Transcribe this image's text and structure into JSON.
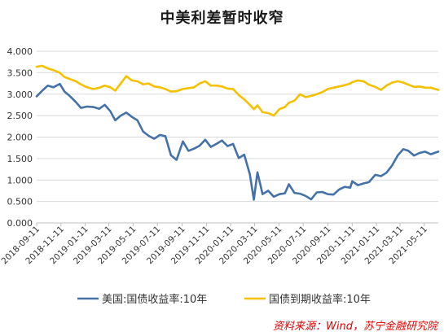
{
  "chart_data": {
    "type": "line",
    "title": "中美利差暂时收窄",
    "ylim": [
      0,
      4
    ],
    "y_ticks": [
      "0.000",
      "0.500",
      "1.000",
      "1.500",
      "2.000",
      "2.500",
      "3.000",
      "3.500",
      "4.000"
    ],
    "x_ticks": [
      "2018-09-11",
      "2018-11-11",
      "2019-01-11",
      "2019-03-11",
      "2019-05-11",
      "2019-07-11",
      "2019-09-11",
      "2019-11-11",
      "2020-01-11",
      "2020-03-11",
      "2020-05-11",
      "2020-07-11",
      "2020-09-11",
      "2020-11-11",
      "2021-01-11",
      "2021-03-11",
      "2021-05-11"
    ],
    "x_range": [
      "2018-09-11",
      "2021-06-15"
    ],
    "grid": true,
    "legend_position": "bottom",
    "colors": {
      "us": "#4472a8",
      "cn": "#f4c000"
    },
    "series": [
      {
        "name": "美国:国债收益率:10年",
        "color": "#4472a8",
        "points": [
          [
            "2018-09-11",
            2.95
          ],
          [
            "2018-09-25",
            3.08
          ],
          [
            "2018-10-09",
            3.2
          ],
          [
            "2018-10-23",
            3.16
          ],
          [
            "2018-11-08",
            3.24
          ],
          [
            "2018-11-20",
            3.06
          ],
          [
            "2018-12-04",
            2.95
          ],
          [
            "2018-12-18",
            2.82
          ],
          [
            "2018-12-31",
            2.68
          ],
          [
            "2019-01-15",
            2.71
          ],
          [
            "2019-02-01",
            2.7
          ],
          [
            "2019-02-15",
            2.66
          ],
          [
            "2019-03-01",
            2.75
          ],
          [
            "2019-03-15",
            2.6
          ],
          [
            "2019-03-27",
            2.39
          ],
          [
            "2019-04-10",
            2.5
          ],
          [
            "2019-04-24",
            2.57
          ],
          [
            "2019-05-08",
            2.47
          ],
          [
            "2019-05-22",
            2.39
          ],
          [
            "2019-06-05",
            2.13
          ],
          [
            "2019-06-19",
            2.03
          ],
          [
            "2019-07-03",
            1.96
          ],
          [
            "2019-07-17",
            2.05
          ],
          [
            "2019-07-31",
            2.02
          ],
          [
            "2019-08-14",
            1.58
          ],
          [
            "2019-08-28",
            1.47
          ],
          [
            "2019-09-13",
            1.9
          ],
          [
            "2019-09-27",
            1.68
          ],
          [
            "2019-10-11",
            1.73
          ],
          [
            "2019-10-25",
            1.8
          ],
          [
            "2019-11-08",
            1.94
          ],
          [
            "2019-11-22",
            1.77
          ],
          [
            "2019-12-06",
            1.84
          ],
          [
            "2019-12-20",
            1.92
          ],
          [
            "2020-01-03",
            1.79
          ],
          [
            "2020-01-17",
            1.84
          ],
          [
            "2020-01-31",
            1.51
          ],
          [
            "2020-02-14",
            1.59
          ],
          [
            "2020-02-28",
            1.13
          ],
          [
            "2020-03-09",
            0.54
          ],
          [
            "2020-03-18",
            1.18
          ],
          [
            "2020-03-31",
            0.67
          ],
          [
            "2020-04-14",
            0.75
          ],
          [
            "2020-04-28",
            0.61
          ],
          [
            "2020-05-12",
            0.67
          ],
          [
            "2020-05-26",
            0.69
          ],
          [
            "2020-06-05",
            0.9
          ],
          [
            "2020-06-19",
            0.7
          ],
          [
            "2020-07-03",
            0.68
          ],
          [
            "2020-07-17",
            0.63
          ],
          [
            "2020-07-31",
            0.55
          ],
          [
            "2020-08-14",
            0.71
          ],
          [
            "2020-08-28",
            0.72
          ],
          [
            "2020-09-11",
            0.67
          ],
          [
            "2020-09-25",
            0.66
          ],
          [
            "2020-10-09",
            0.78
          ],
          [
            "2020-10-23",
            0.84
          ],
          [
            "2020-11-06",
            0.82
          ],
          [
            "2020-11-11",
            0.97
          ],
          [
            "2020-11-25",
            0.88
          ],
          [
            "2020-12-09",
            0.92
          ],
          [
            "2020-12-23",
            0.95
          ],
          [
            "2021-01-08",
            1.12
          ],
          [
            "2021-01-22",
            1.09
          ],
          [
            "2021-02-05",
            1.17
          ],
          [
            "2021-02-19",
            1.34
          ],
          [
            "2021-03-05",
            1.57
          ],
          [
            "2021-03-19",
            1.72
          ],
          [
            "2021-04-01",
            1.68
          ],
          [
            "2021-04-15",
            1.57
          ],
          [
            "2021-04-29",
            1.63
          ],
          [
            "2021-05-13",
            1.66
          ],
          [
            "2021-05-27",
            1.6
          ],
          [
            "2021-06-15",
            1.66
          ]
        ]
      },
      {
        "name": "国债到期收益率:10年",
        "color": "#f4c000",
        "points": [
          [
            "2018-09-11",
            3.64
          ],
          [
            "2018-09-25",
            3.66
          ],
          [
            "2018-10-09",
            3.6
          ],
          [
            "2018-10-23",
            3.56
          ],
          [
            "2018-11-08",
            3.5
          ],
          [
            "2018-11-20",
            3.4
          ],
          [
            "2018-12-04",
            3.35
          ],
          [
            "2018-12-18",
            3.3
          ],
          [
            "2018-12-31",
            3.23
          ],
          [
            "2019-01-15",
            3.16
          ],
          [
            "2019-02-01",
            3.12
          ],
          [
            "2019-02-15",
            3.15
          ],
          [
            "2019-03-01",
            3.2
          ],
          [
            "2019-03-15",
            3.16
          ],
          [
            "2019-03-27",
            3.08
          ],
          [
            "2019-04-10",
            3.25
          ],
          [
            "2019-04-24",
            3.42
          ],
          [
            "2019-05-08",
            3.32
          ],
          [
            "2019-05-22",
            3.3
          ],
          [
            "2019-06-05",
            3.23
          ],
          [
            "2019-06-19",
            3.25
          ],
          [
            "2019-07-03",
            3.18
          ],
          [
            "2019-07-17",
            3.16
          ],
          [
            "2019-07-31",
            3.12
          ],
          [
            "2019-08-14",
            3.06
          ],
          [
            "2019-08-28",
            3.07
          ],
          [
            "2019-09-13",
            3.12
          ],
          [
            "2019-09-27",
            3.14
          ],
          [
            "2019-10-11",
            3.16
          ],
          [
            "2019-10-25",
            3.25
          ],
          [
            "2019-11-08",
            3.3
          ],
          [
            "2019-11-22",
            3.2
          ],
          [
            "2019-12-06",
            3.2
          ],
          [
            "2019-12-20",
            3.18
          ],
          [
            "2020-01-03",
            3.13
          ],
          [
            "2020-01-17",
            3.12
          ],
          [
            "2020-01-31",
            2.98
          ],
          [
            "2020-02-14",
            2.88
          ],
          [
            "2020-02-28",
            2.75
          ],
          [
            "2020-03-09",
            2.65
          ],
          [
            "2020-03-18",
            2.74
          ],
          [
            "2020-03-31",
            2.58
          ],
          [
            "2020-04-14",
            2.56
          ],
          [
            "2020-04-28",
            2.5
          ],
          [
            "2020-05-12",
            2.65
          ],
          [
            "2020-05-26",
            2.7
          ],
          [
            "2020-06-05",
            2.8
          ],
          [
            "2020-06-19",
            2.85
          ],
          [
            "2020-07-03",
            3.0
          ],
          [
            "2020-07-17",
            2.93
          ],
          [
            "2020-07-31",
            2.96
          ],
          [
            "2020-08-14",
            3.0
          ],
          [
            "2020-08-28",
            3.05
          ],
          [
            "2020-09-11",
            3.12
          ],
          [
            "2020-09-25",
            3.15
          ],
          [
            "2020-10-09",
            3.18
          ],
          [
            "2020-10-23",
            3.21
          ],
          [
            "2020-11-06",
            3.25
          ],
          [
            "2020-11-11",
            3.28
          ],
          [
            "2020-11-25",
            3.32
          ],
          [
            "2020-12-09",
            3.3
          ],
          [
            "2020-12-23",
            3.22
          ],
          [
            "2021-01-08",
            3.17
          ],
          [
            "2021-01-22",
            3.1
          ],
          [
            "2021-02-05",
            3.2
          ],
          [
            "2021-02-19",
            3.27
          ],
          [
            "2021-03-05",
            3.3
          ],
          [
            "2021-03-19",
            3.27
          ],
          [
            "2021-04-01",
            3.22
          ],
          [
            "2021-04-15",
            3.17
          ],
          [
            "2021-04-29",
            3.18
          ],
          [
            "2021-05-13",
            3.15
          ],
          [
            "2021-05-27",
            3.15
          ],
          [
            "2021-06-15",
            3.1
          ]
        ]
      }
    ]
  },
  "source_note": "资料来源：Wind，苏宁金融研究院"
}
